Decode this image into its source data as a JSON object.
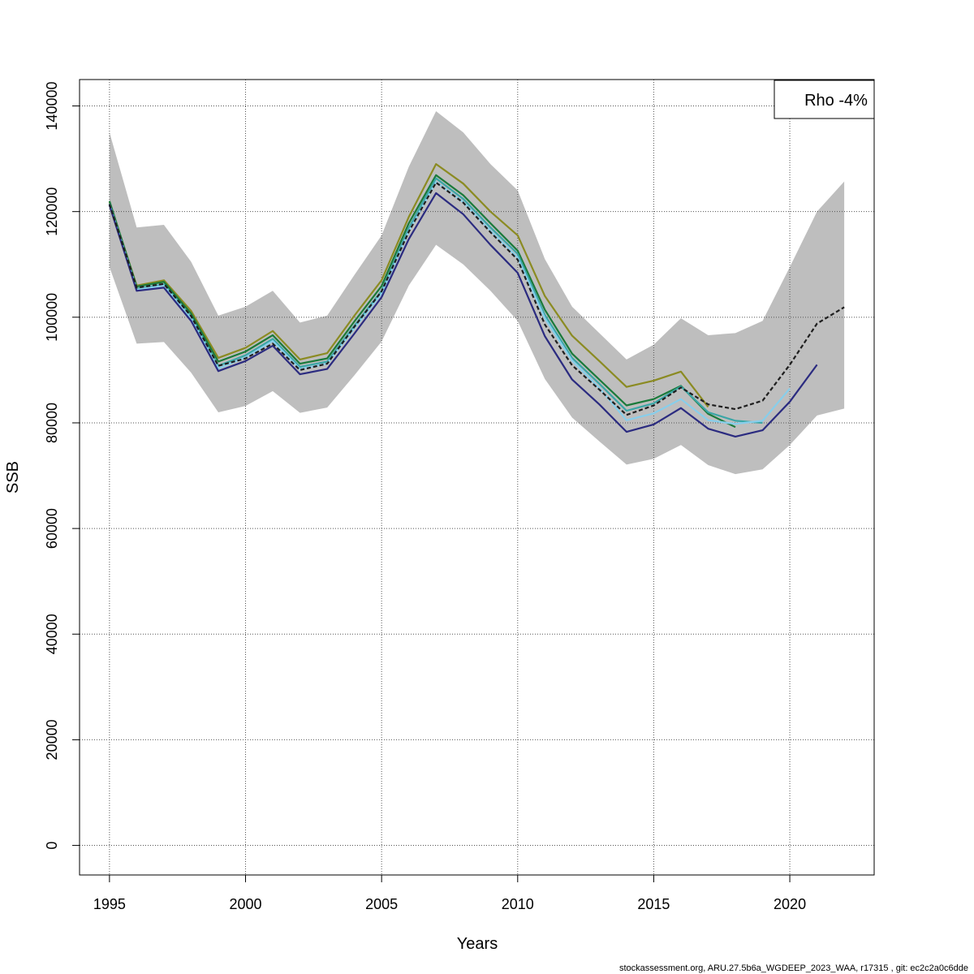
{
  "chart_data": {
    "type": "line",
    "xlabel": "Years",
    "ylabel": "SSB",
    "xlim": [
      1993.9,
      2023.1
    ],
    "ylim": [
      -5600,
      145000
    ],
    "x_ticks": [
      1995,
      2000,
      2005,
      2010,
      2015,
      2020
    ],
    "y_ticks": [
      0,
      20000,
      40000,
      60000,
      80000,
      100000,
      120000,
      140000
    ],
    "grid": true,
    "legend": {
      "position": "top-right",
      "text": "Rho -4%"
    },
    "footer": "stockassessment.org, ARU.27.5b6a_WGDEEP_2023_WAA, r17315 , git: ec2c2a0c6dde",
    "confidence_band": {
      "color": "#bebebe",
      "x": [
        1995,
        1996,
        1997,
        1998,
        1999,
        2000,
        2001,
        2002,
        2003,
        2004,
        2005,
        2006,
        2007,
        2008,
        2009,
        2010,
        2011,
        2012,
        2013,
        2014,
        2015,
        2016,
        2017,
        2018,
        2019,
        2020,
        2021,
        2022
      ],
      "upper": [
        135000,
        117000,
        117500,
        110500,
        100300,
        102000,
        105000,
        99000,
        100300,
        108000,
        115500,
        128500,
        139000,
        135000,
        129000,
        124000,
        111000,
        102000,
        97000,
        92000,
        94800,
        99800,
        96600,
        97000,
        99300,
        109500,
        120000,
        125700
      ],
      "lower": [
        109500,
        95000,
        95300,
        89500,
        82000,
        83200,
        86000,
        81900,
        82900,
        89000,
        95400,
        106000,
        113700,
        110000,
        105000,
        99300,
        88300,
        81000,
        76500,
        72100,
        73200,
        75800,
        72000,
        70300,
        71200,
        75800,
        81400,
        82700
      ]
    },
    "series": [
      {
        "color": "#8b8b22",
        "dash": false,
        "x": [
          1995,
          1996,
          1997,
          1998,
          1999,
          2000,
          2001,
          2002,
          2003,
          2004,
          2005,
          2006,
          2007,
          2008,
          2009,
          2010,
          2011,
          2012,
          2013,
          2014,
          2015,
          2016,
          2017
        ],
        "values": [
          121800,
          106000,
          107000,
          101200,
          92300,
          94200,
          97400,
          92000,
          93200,
          100300,
          107000,
          119000,
          129000,
          125300,
          120000,
          115500,
          104000,
          96500,
          91700,
          86800,
          88000,
          89700,
          83000
        ]
      },
      {
        "color": "#1a7a3a",
        "dash": false,
        "x": [
          1995,
          1996,
          1997,
          1998,
          1999,
          2000,
          2001,
          2002,
          2003,
          2004,
          2005,
          2006,
          2007,
          2008,
          2009,
          2010,
          2011,
          2012,
          2013,
          2014,
          2015,
          2016,
          2017,
          2018
        ],
        "values": [
          122000,
          105800,
          106700,
          100700,
          91600,
          93500,
          96600,
          91200,
          92200,
          99200,
          105900,
          117800,
          126900,
          123100,
          117800,
          112600,
          101400,
          93100,
          88200,
          83300,
          84500,
          87000,
          81700,
          79200
        ]
      },
      {
        "color": "#3aa6a6",
        "dash": false,
        "x": [
          1995,
          1996,
          1997,
          1998,
          1999,
          2000,
          2001,
          2002,
          2003,
          2004,
          2005,
          2006,
          2007,
          2008,
          2009,
          2010,
          2011,
          2012,
          2013,
          2014,
          2015,
          2016,
          2017,
          2018,
          2019
        ],
        "values": [
          121500,
          105400,
          106200,
          100100,
          90800,
          92800,
          95900,
          90600,
          91600,
          98400,
          105000,
          116900,
          126300,
          122400,
          117000,
          112000,
          100400,
          92300,
          87400,
          82300,
          83700,
          86900,
          82000,
          80400,
          80000
        ]
      },
      {
        "color": "#87ceeb",
        "dash": false,
        "x": [
          1995,
          1996,
          1997,
          1998,
          1999,
          2000,
          2001,
          2002,
          2003,
          2004,
          2005,
          2006,
          2007,
          2008,
          2009,
          2010,
          2011,
          2012,
          2013,
          2014,
          2015,
          2016,
          2017,
          2018,
          2019,
          2020
        ],
        "values": [
          121300,
          105200,
          106000,
          99800,
          90300,
          92400,
          95500,
          90200,
          91200,
          97900,
          104500,
          116300,
          125600,
          121800,
          116400,
          111300,
          99800,
          91800,
          86600,
          80500,
          81800,
          84500,
          80500,
          79800,
          80400,
          86500
        ]
      },
      {
        "color": "#2b2b80",
        "dash": false,
        "x": [
          1995,
          1996,
          1997,
          1998,
          1999,
          2000,
          2001,
          2002,
          2003,
          2004,
          2005,
          2006,
          2007,
          2008,
          2009,
          2010,
          2011,
          2012,
          2013,
          2014,
          2015,
          2016,
          2017,
          2018,
          2019,
          2020,
          2021
        ],
        "values": [
          121200,
          105000,
          105600,
          99300,
          89800,
          91700,
          94600,
          89200,
          90200,
          96900,
          103800,
          114800,
          123500,
          119500,
          113700,
          108400,
          96400,
          88200,
          83500,
          78300,
          79700,
          82800,
          78900,
          77400,
          78600,
          84000,
          91000
        ]
      },
      {
        "color": "#1f1f1f",
        "dash": true,
        "x": [
          1995,
          1996,
          1997,
          1998,
          1999,
          2000,
          2001,
          2002,
          2003,
          2004,
          2005,
          2006,
          2007,
          2008,
          2009,
          2010,
          2011,
          2012,
          2013,
          2014,
          2015,
          2016,
          2017,
          2018,
          2019,
          2020,
          2021,
          2022
        ],
        "values": [
          121400,
          105600,
          106300,
          100200,
          90800,
          92200,
          95000,
          90000,
          91200,
          98200,
          104900,
          116200,
          125500,
          121700,
          116100,
          110900,
          98600,
          90900,
          86300,
          81500,
          83300,
          86700,
          83500,
          82600,
          84200,
          91000,
          98800,
          101900
        ]
      }
    ]
  }
}
